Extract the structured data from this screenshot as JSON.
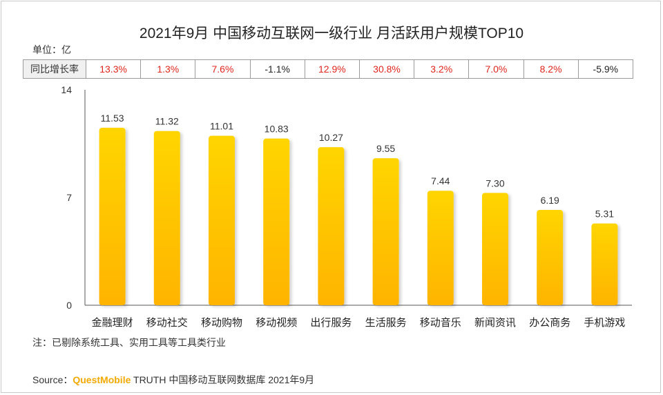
{
  "title": "2021年9月 中国移动互联网一级行业 月活跃用户规模TOP10",
  "unit_label": "单位：亿",
  "yoy_row": {
    "header": "同比增长率",
    "values": [
      "13.3%",
      "1.3%",
      "7.6%",
      "-1.1%",
      "12.9%",
      "30.8%",
      "3.2%",
      "7.0%",
      "8.2%",
      "-5.9%"
    ]
  },
  "chart_data": {
    "type": "bar",
    "categories": [
      "金融理财",
      "移动社交",
      "移动购物",
      "移动视频",
      "出行服务",
      "生活服务",
      "移动音乐",
      "新闻资讯",
      "办公商务",
      "手机游戏"
    ],
    "values": [
      11.53,
      11.32,
      11.01,
      10.83,
      10.27,
      9.55,
      7.44,
      7.3,
      6.19,
      5.31
    ],
    "value_labels": [
      "11.53",
      "11.32",
      "11.01",
      "10.83",
      "10.27",
      "9.55",
      "7.44",
      "7.30",
      "6.19",
      "5.31"
    ],
    "ylim": [
      0,
      14
    ],
    "yticks": [
      "0",
      "7",
      "14"
    ],
    "grid": false,
    "bar_color_top": "#ffd500",
    "bar_color_bottom": "#ffb400"
  },
  "note": "注：已剔除系统工具、实用工具等工具类行业",
  "source": {
    "prefix": "Source：",
    "brand": "QuestMobile",
    "suffix": " TRUTH 中国移动互联网数据库 2021年9月"
  }
}
